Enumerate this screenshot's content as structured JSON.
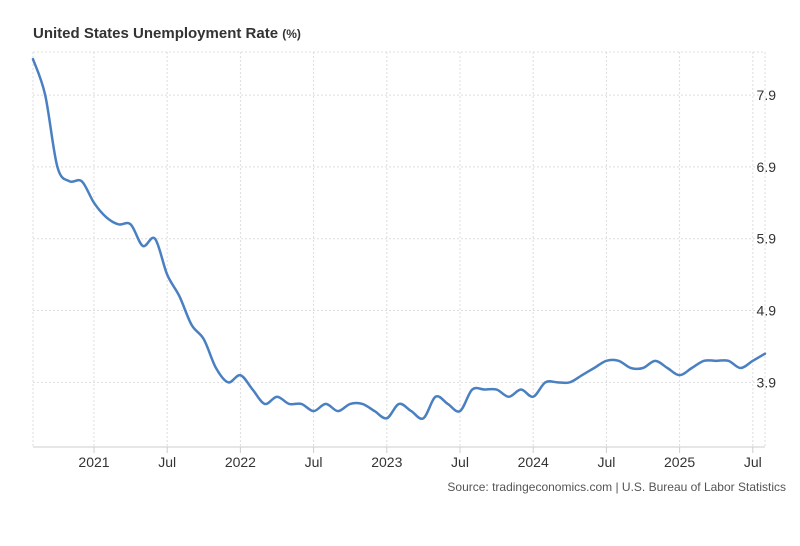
{
  "chart_data": {
    "type": "line",
    "title": "United States Unemployment Rate",
    "unit": "(%)",
    "source": "Source: tradingeconomics.com | U.S. Bureau of Labor Statistics",
    "x_tick_labels": [
      "2021",
      "Jul",
      "2022",
      "Jul",
      "2023",
      "Jul",
      "2024",
      "Jul",
      "2025",
      "Jul"
    ],
    "x_tick_dates": [
      "2021-01",
      "2021-07",
      "2022-01",
      "2022-07",
      "2023-01",
      "2023-07",
      "2024-01",
      "2024-07",
      "2025-01",
      "2025-07"
    ],
    "y_ticks": [
      3.9,
      4.9,
      5.9,
      6.9,
      7.9
    ],
    "x_range": [
      "2020-08",
      "2025-08"
    ],
    "ylim": [
      3.0,
      8.5
    ],
    "grid": true,
    "series": [
      {
        "color": "#4a80c2",
        "x": [
          "2020-08",
          "2020-09",
          "2020-10",
          "2020-11",
          "2020-12",
          "2021-01",
          "2021-02",
          "2021-03",
          "2021-04",
          "2021-05",
          "2021-06",
          "2021-07",
          "2021-08",
          "2021-09",
          "2021-10",
          "2021-11",
          "2021-12",
          "2022-01",
          "2022-02",
          "2022-03",
          "2022-04",
          "2022-05",
          "2022-06",
          "2022-07",
          "2022-08",
          "2022-09",
          "2022-10",
          "2022-11",
          "2022-12",
          "2023-01",
          "2023-02",
          "2023-03",
          "2023-04",
          "2023-05",
          "2023-06",
          "2023-07",
          "2023-08",
          "2023-09",
          "2023-10",
          "2023-11",
          "2023-12",
          "2024-01",
          "2024-02",
          "2024-03",
          "2024-04",
          "2024-05",
          "2024-06",
          "2024-07",
          "2024-08",
          "2024-09",
          "2024-10",
          "2024-11",
          "2024-12",
          "2025-01",
          "2025-02",
          "2025-03",
          "2025-04",
          "2025-05",
          "2025-06",
          "2025-07",
          "2025-08"
        ],
        "values": [
          8.4,
          7.9,
          6.9,
          6.7,
          6.7,
          6.4,
          6.2,
          6.1,
          6.1,
          5.8,
          5.9,
          5.4,
          5.1,
          4.7,
          4.5,
          4.1,
          3.9,
          4.0,
          3.8,
          3.6,
          3.7,
          3.6,
          3.6,
          3.5,
          3.6,
          3.5,
          3.6,
          3.6,
          3.5,
          3.4,
          3.6,
          3.5,
          3.4,
          3.7,
          3.6,
          3.5,
          3.8,
          3.8,
          3.8,
          3.7,
          3.8,
          3.7,
          3.9,
          3.9,
          3.9,
          4.0,
          4.1,
          4.2,
          4.2,
          4.1,
          4.1,
          4.2,
          4.1,
          4.0,
          4.1,
          4.2,
          4.2,
          4.2,
          4.1,
          4.2,
          4.3
        ]
      }
    ]
  }
}
